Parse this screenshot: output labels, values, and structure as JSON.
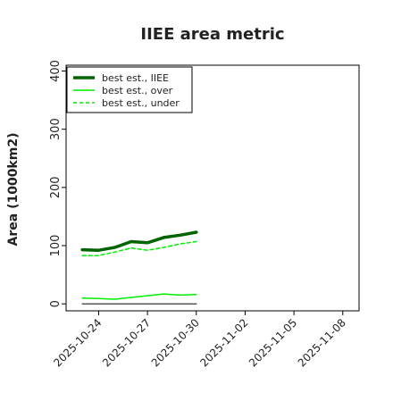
{
  "chart_data": {
    "type": "line",
    "title": "IIEE area metric",
    "xlabel": "",
    "ylabel": "Area (1000km2)",
    "ylim": [
      -12,
      410
    ],
    "xlim": [
      "2025-10-22",
      "2025-11-09"
    ],
    "yticks": [
      0,
      100,
      200,
      300,
      400
    ],
    "xticks": [
      "2025-10-24",
      "2025-10-27",
      "2025-10-30",
      "2025-11-02",
      "2025-11-05",
      "2025-11-08"
    ],
    "legend": {
      "position": "top-left"
    },
    "grid": false,
    "x": [
      "2025-10-23",
      "2025-10-24",
      "2025-10-25",
      "2025-10-26",
      "2025-10-27",
      "2025-10-28",
      "2025-10-29",
      "2025-10-30"
    ],
    "series": [
      {
        "name": "best est., IIEE",
        "color": "#006400",
        "style": "solid",
        "weight": "thick",
        "values": [
          93,
          92,
          97,
          107,
          105,
          114,
          118,
          123
        ]
      },
      {
        "name": "best est., over",
        "color": "#00ee00",
        "style": "solid",
        "weight": "thin",
        "values": [
          10,
          9,
          8,
          11,
          14,
          17,
          15,
          16
        ]
      },
      {
        "name": "best est., under",
        "color": "#00ee00",
        "style": "dashed",
        "weight": "thin",
        "values": [
          83,
          83,
          89,
          96,
          92,
          97,
          103,
          107
        ]
      },
      {
        "color": "#555555",
        "style": "solid",
        "weight": "thin",
        "values": [
          0,
          0,
          0,
          0,
          0,
          0,
          0,
          0
        ]
      }
    ]
  }
}
